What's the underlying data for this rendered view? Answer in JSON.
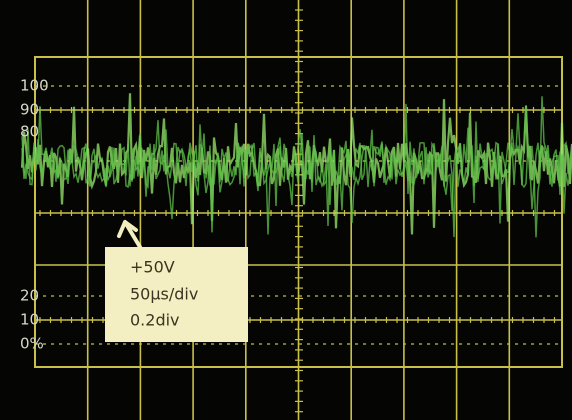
{
  "scale_labels": [
    "100",
    "90",
    "80",
    "20",
    "10",
    "0%"
  ],
  "annotation": {
    "lines": [
      "+50V",
      "50µs/div",
      "0.2div"
    ]
  }
}
